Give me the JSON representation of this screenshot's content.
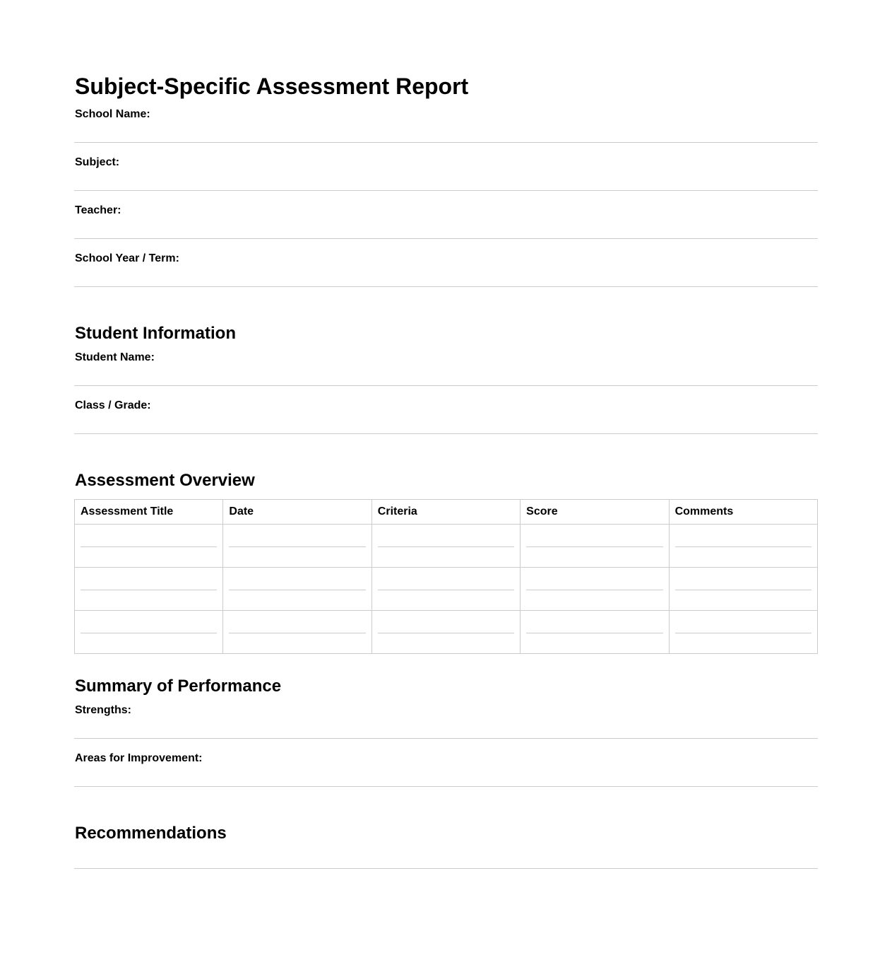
{
  "title": "Subject-Specific Assessment Report",
  "header_fields": [
    "School Name:",
    "Subject:",
    "Teacher:",
    "School Year / Term:"
  ],
  "student_section": {
    "heading": "Student Information",
    "fields": [
      "Student Name:",
      "Class / Grade:"
    ]
  },
  "overview": {
    "heading": "Assessment Overview",
    "columns": [
      "Assessment Title",
      "Date",
      "Criteria",
      "Score",
      "Comments"
    ],
    "row_count": 3
  },
  "summary": {
    "heading": "Summary of Performance",
    "fields": [
      "Strengths:",
      "Areas for Improvement:"
    ]
  },
  "recommendations": {
    "heading": "Recommendations"
  }
}
